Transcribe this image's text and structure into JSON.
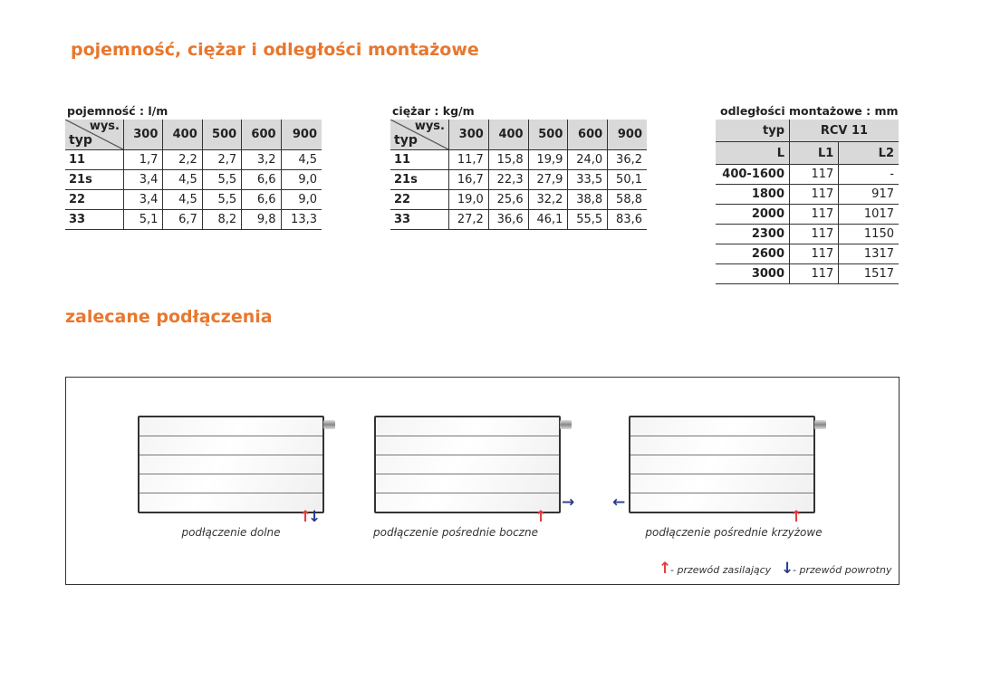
{
  "headings": {
    "title": "pojemność, ciężar i odległości montażowe",
    "connections": "zalecane podłączenia"
  },
  "capacity": {
    "caption": "pojemność : l/m",
    "corner_top": "wys.",
    "corner_bottom": "typ",
    "columns": [
      "300",
      "400",
      "500",
      "600",
      "900"
    ],
    "rows": [
      [
        "11",
        "1,7",
        "2,2",
        "2,7",
        "3,2",
        "4,5"
      ],
      [
        "21s",
        "3,4",
        "4,5",
        "5,5",
        "6,6",
        "9,0"
      ],
      [
        "22",
        "3,4",
        "4,5",
        "5,5",
        "6,6",
        "9,0"
      ],
      [
        "33",
        "5,1",
        "6,7",
        "8,2",
        "9,8",
        "13,3"
      ]
    ]
  },
  "weight": {
    "caption": "ciężar : kg/m",
    "corner_top": "wys.",
    "corner_bottom": "typ",
    "columns": [
      "300",
      "400",
      "500",
      "600",
      "900"
    ],
    "rows": [
      [
        "11",
        "11,7",
        "15,8",
        "19,9",
        "24,0",
        "36,2"
      ],
      [
        "21s",
        "16,7",
        "22,3",
        "27,9",
        "33,5",
        "50,1"
      ],
      [
        "22",
        "19,0",
        "25,6",
        "32,2",
        "38,8",
        "58,8"
      ],
      [
        "33",
        "27,2",
        "36,6",
        "46,1",
        "55,5",
        "83,6"
      ]
    ]
  },
  "distances": {
    "caption": "odległości montażowe : mm",
    "header1": [
      "typ",
      "RCV 11"
    ],
    "header2": [
      "L",
      "L1",
      "L2"
    ],
    "rows": [
      [
        "400-1600",
        "117",
        "-"
      ],
      [
        "1800",
        "117",
        "917"
      ],
      [
        "2000",
        "117",
        "1017"
      ],
      [
        "2300",
        "117",
        "1150"
      ],
      [
        "2600",
        "117",
        "1317"
      ],
      [
        "3000",
        "117",
        "1517"
      ]
    ]
  },
  "diagrams": [
    {
      "caption": "podłączenie dolne"
    },
    {
      "caption": "podłączenie pośrednie boczne"
    },
    {
      "caption": "podłączenie pośrednie krzyżowe"
    }
  ],
  "legend": {
    "supply": "- przewód zasilający",
    "return": "- przewód powrotny"
  },
  "colors": {
    "accent": "#e8772e",
    "supply": "#e53a3a",
    "return": "#2b3a8f"
  }
}
